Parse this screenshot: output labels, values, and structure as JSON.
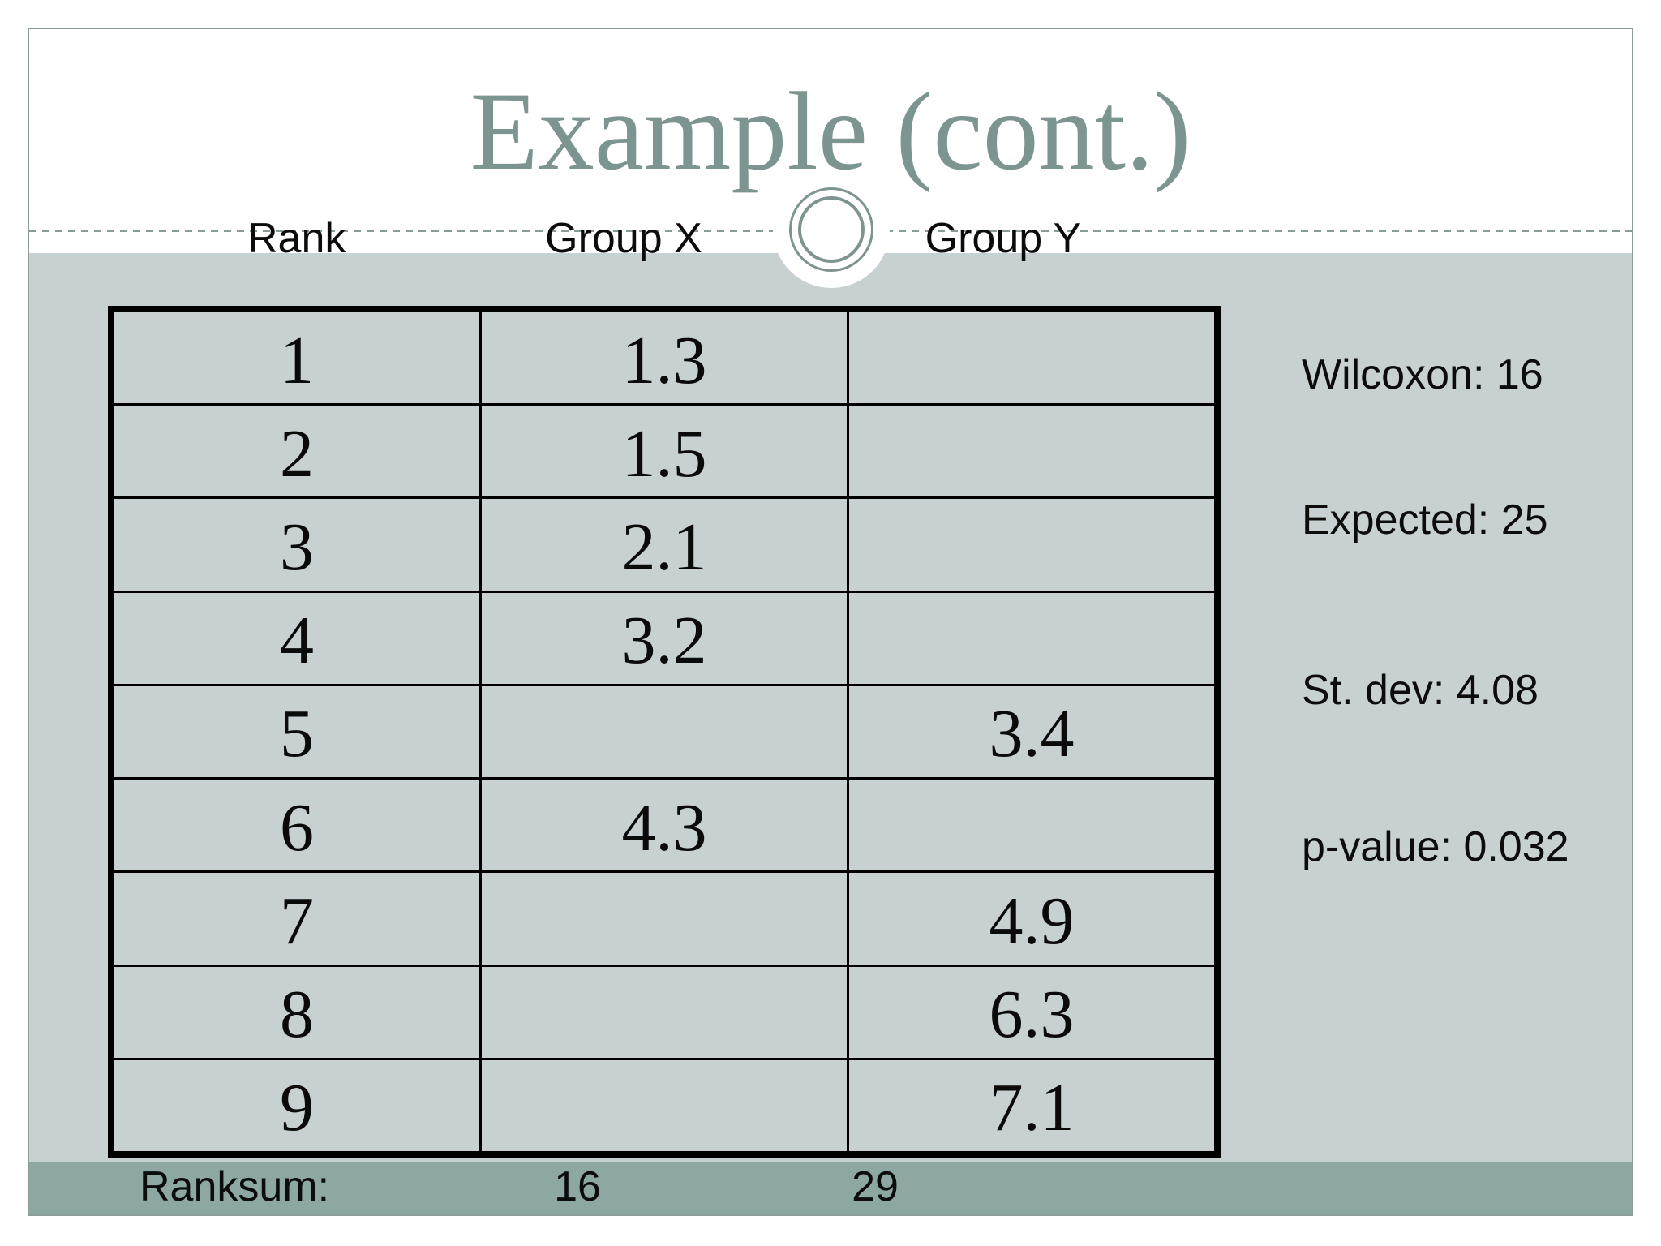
{
  "slide": {
    "title": "Example (cont.)",
    "columns": [
      {
        "label": "Rank"
      },
      {
        "label": "Group X"
      },
      {
        "label": "Group Y"
      }
    ],
    "table": {
      "rows": [
        {
          "rank": "1",
          "group_x": "1.3",
          "group_y": ""
        },
        {
          "rank": "2",
          "group_x": "1.5",
          "group_y": ""
        },
        {
          "rank": "3",
          "group_x": "2.1",
          "group_y": ""
        },
        {
          "rank": "4",
          "group_x": "3.2",
          "group_y": ""
        },
        {
          "rank": "5",
          "group_x": "",
          "group_y": "3.4"
        },
        {
          "rank": "6",
          "group_x": "4.3",
          "group_y": ""
        },
        {
          "rank": "7",
          "group_x": "",
          "group_y": "4.9"
        },
        {
          "rank": "8",
          "group_x": "",
          "group_y": "6.3"
        },
        {
          "rank": "9",
          "group_x": "",
          "group_y": "7.1"
        }
      ]
    },
    "stats": [
      {
        "text": "Wilcoxon: 16"
      },
      {
        "text": "Expected: 25"
      },
      {
        "text": "St. dev: 4.08"
      },
      {
        "text": "p-value: 0.032"
      }
    ],
    "ranksum": {
      "label": "Ranksum:",
      "group_x_total": "16",
      "group_y_total": "29"
    },
    "colors": {
      "accent_teal": "#7d9591",
      "content_background": "#c7d1d2",
      "ranksum_band": "#8da7a2",
      "table_lines": "#000000",
      "frame_border": "#8a9d99",
      "text": "#0c0c0c"
    }
  }
}
